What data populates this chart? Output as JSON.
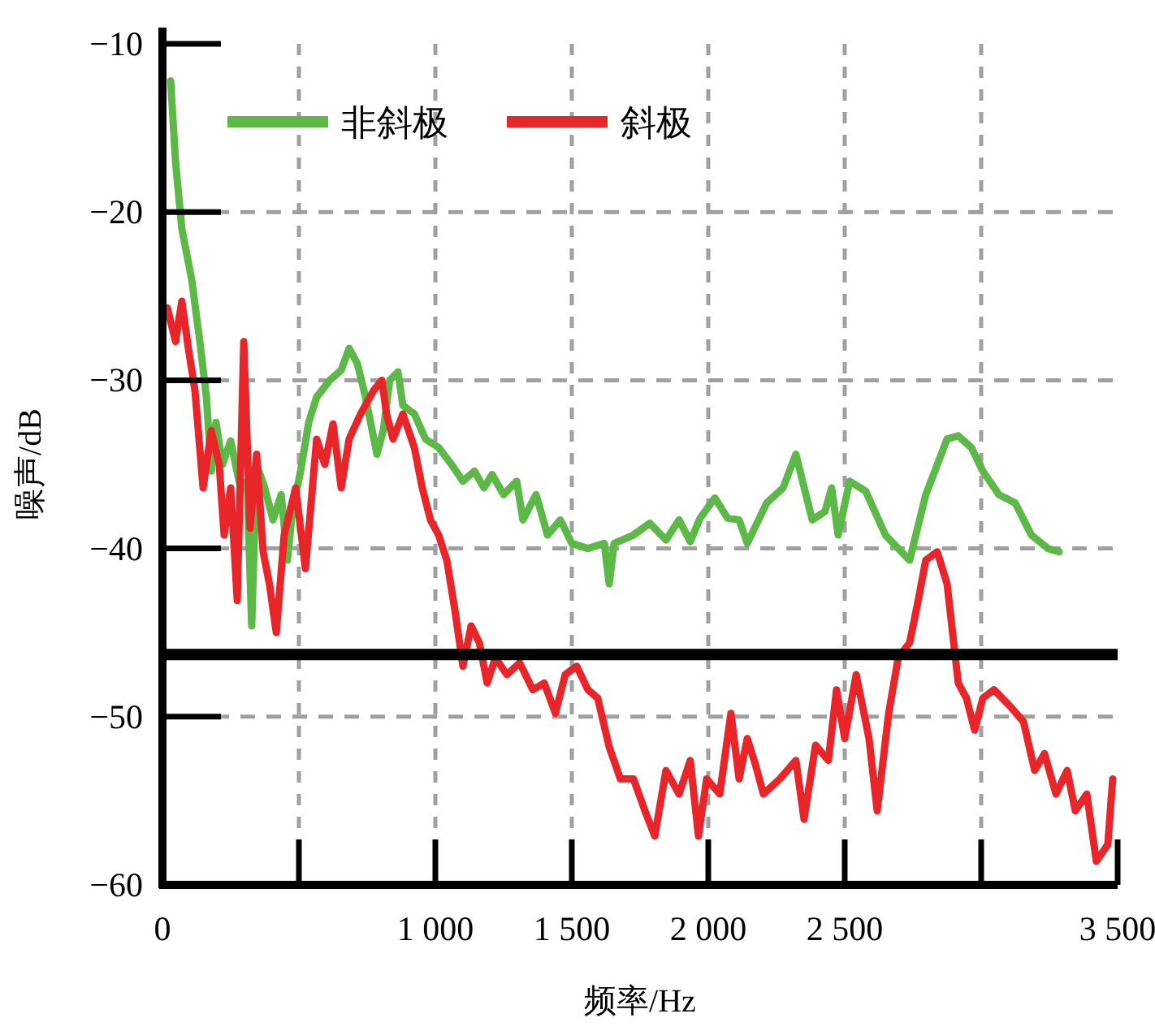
{
  "chart_data": {
    "type": "line",
    "xlabel": "频率/Hz",
    "ylabel": "噪声/dB",
    "xlim": [
      0,
      3500
    ],
    "ylim": [
      -60,
      -10
    ],
    "xticks": [
      0,
      {
        "value": 500,
        "label": null
      },
      {
        "value": 1000,
        "label": "1 000"
      },
      {
        "value": 1500,
        "label": "1 500"
      },
      {
        "value": 2000,
        "label": "2 000"
      },
      {
        "value": 2500,
        "label": "2 500"
      },
      {
        "value": 3000,
        "label": null
      },
      {
        "value": 3500,
        "label": "3 500"
      }
    ],
    "yticks": [
      -60,
      -50,
      -40,
      -30,
      -20,
      -10
    ],
    "grid": true,
    "legend": "top left",
    "line_style": "solid",
    "ref_lines": [
      {
        "axis": "y",
        "value": -46.3,
        "label": null,
        "color": "#000000",
        "line_style": "solid"
      }
    ],
    "series": [
      {
        "name": "非斜极",
        "color": "#5cb847",
        "x": [
          30,
          48,
          71,
          107,
          137,
          161,
          179,
          196,
          220,
          250,
          286,
          310,
          327,
          345,
          375,
          405,
          435,
          458,
          476,
          506,
          536,
          565,
          613,
          655,
          684,
          714,
          744,
          786,
          809,
          833,
          863,
          881,
          923,
          964,
          1012,
          1059,
          1101,
          1143,
          1178,
          1208,
          1250,
          1298,
          1321,
          1369,
          1411,
          1458,
          1500,
          1559,
          1619,
          1637,
          1655,
          1726,
          1786,
          1845,
          1893,
          1934,
          1970,
          2024,
          2071,
          2113,
          2143,
          2214,
          2274,
          2321,
          2381,
          2428,
          2452,
          2476,
          2518,
          2577,
          2649,
          2738,
          2797,
          2875,
          2916,
          2964,
          3006,
          3065,
          3125,
          3184,
          3244,
          3286
        ],
        "values": [
          -12.2,
          -17,
          -21,
          -24,
          -27.7,
          -31,
          -35.4,
          -32.5,
          -35,
          -33.6,
          -36.4,
          -36,
          -44.6,
          -35,
          -36.4,
          -38.3,
          -36.8,
          -40.7,
          -37.8,
          -35.4,
          -32.5,
          -31,
          -30,
          -29.4,
          -28.1,
          -29,
          -31,
          -34.4,
          -33,
          -30,
          -29.5,
          -31.5,
          -32,
          -33.5,
          -34,
          -35,
          -36,
          -35.4,
          -36.4,
          -35.6,
          -36.8,
          -36,
          -38.3,
          -36.8,
          -39.2,
          -38.3,
          -39.7,
          -40,
          -39.7,
          -42.1,
          -39.7,
          -39.2,
          -38.5,
          -39.5,
          -38.3,
          -39.6,
          -38.2,
          -37,
          -38.2,
          -38.3,
          -39.7,
          -37.3,
          -36.4,
          -34.4,
          -38.3,
          -37.8,
          -36.4,
          -39.2,
          -36,
          -36.6,
          -39.2,
          -40.7,
          -36.8,
          -33.5,
          -33.3,
          -34,
          -35.4,
          -36.8,
          -37.3,
          -39.2,
          -40,
          -40.2
        ]
      },
      {
        "name": "斜极",
        "color": "#e8262a",
        "x": [
          18,
          48,
          71,
          95,
          119,
          149,
          179,
          208,
          226,
          250,
          274,
          298,
          321,
          345,
          369,
          393,
          417,
          446,
          488,
          524,
          565,
          595,
          625,
          655,
          684,
          726,
          774,
          804,
          821,
          845,
          881,
          923,
          952,
          982,
          1012,
          1042,
          1071,
          1101,
          1131,
          1161,
          1190,
          1220,
          1262,
          1309,
          1357,
          1399,
          1440,
          1476,
          1518,
          1559,
          1595,
          1637,
          1678,
          1726,
          1768,
          1804,
          1845,
          1893,
          1934,
          1964,
          1994,
          2042,
          2083,
          2113,
          2143,
          2172,
          2202,
          2262,
          2321,
          2351,
          2393,
          2440,
          2470,
          2500,
          2542,
          2589,
          2619,
          2661,
          2696,
          2738,
          2768,
          2797,
          2839,
          2875,
          2916,
          2946,
          2976,
          3006,
          3047,
          3107,
          3155,
          3196,
          3232,
          3274,
          3315,
          3345,
          3387,
          3422,
          3464,
          3482
        ],
        "values": [
          -25.7,
          -27.7,
          -25.3,
          -28.1,
          -30.6,
          -36.4,
          -33,
          -35,
          -39.2,
          -36.4,
          -43.1,
          -27.7,
          -38.8,
          -34.4,
          -40.2,
          -42.2,
          -45,
          -39.2,
          -36.4,
          -41.2,
          -33.5,
          -35,
          -32.6,
          -36.4,
          -33.5,
          -32,
          -30.6,
          -30,
          -32,
          -33.5,
          -32,
          -34,
          -36.4,
          -38.3,
          -39.2,
          -40.7,
          -43.6,
          -47,
          -44.6,
          -45.6,
          -48,
          -46.5,
          -47.5,
          -46.8,
          -48.4,
          -48,
          -49.8,
          -47.5,
          -47,
          -48.4,
          -48.9,
          -51.8,
          -53.7,
          -53.7,
          -55.6,
          -57.1,
          -53.2,
          -54.6,
          -52.6,
          -57.1,
          -53.7,
          -54.6,
          -49.8,
          -53.7,
          -51.3,
          -52.8,
          -54.6,
          -53.7,
          -52.6,
          -56.1,
          -51.7,
          -52.6,
          -48.4,
          -51.3,
          -47.5,
          -51.3,
          -55.6,
          -49.8,
          -46.5,
          -45.6,
          -43.2,
          -40.7,
          -40.2,
          -42.1,
          -48,
          -48.9,
          -50.8,
          -48.9,
          -48.4,
          -49.4,
          -50.3,
          -53.2,
          -52.2,
          -54.6,
          -53.2,
          -55.6,
          -54.6,
          -58.6,
          -57.6,
          -53.7
        ]
      }
    ]
  }
}
